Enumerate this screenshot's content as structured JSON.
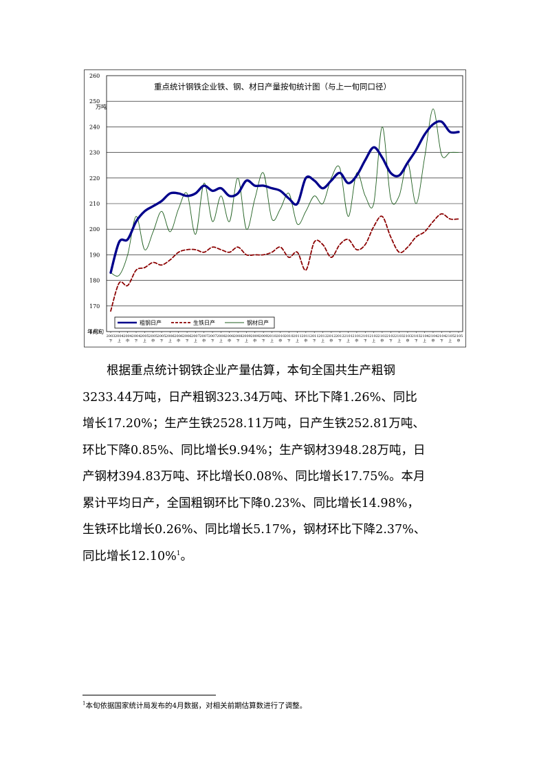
{
  "chart_data": {
    "type": "line",
    "title": "重点统计钢铁企业铁、钢、材日产量按旬统计图（与上一旬同口径）",
    "ylabel": "万吨",
    "xlabel": "年月旬",
    "ylim": [
      160,
      260
    ],
    "yticks": [
      160,
      170,
      180,
      190,
      200,
      210,
      220,
      230,
      240,
      250,
      260
    ],
    "grid": true,
    "legend_position": "bottom-left",
    "x_ticks": [
      {
        "year_month": "2003",
        "dekad": "下"
      },
      {
        "year_month": "2004",
        "dekad": "上"
      },
      {
        "year_month": "2004",
        "dekad": "中"
      },
      {
        "year_month": "2004",
        "dekad": "下"
      },
      {
        "year_month": "2005",
        "dekad": "上"
      },
      {
        "year_month": "2005",
        "dekad": "中"
      },
      {
        "year_month": "2005",
        "dekad": "下"
      },
      {
        "year_month": "2006",
        "dekad": "上"
      },
      {
        "year_month": "2006",
        "dekad": "中"
      },
      {
        "year_month": "2006",
        "dekad": "下"
      },
      {
        "year_month": "2007",
        "dekad": "上"
      },
      {
        "year_month": "2007",
        "dekad": "中"
      },
      {
        "year_month": "2007",
        "dekad": "下"
      },
      {
        "year_month": "2008",
        "dekad": "上"
      },
      {
        "year_month": "2008",
        "dekad": "中"
      },
      {
        "year_month": "2008",
        "dekad": "下"
      },
      {
        "year_month": "2009",
        "dekad": "上"
      },
      {
        "year_month": "2009",
        "dekad": "中"
      },
      {
        "year_month": "2009",
        "dekad": "下"
      },
      {
        "year_month": "2010",
        "dekad": "上"
      },
      {
        "year_month": "2010",
        "dekad": "中"
      },
      {
        "year_month": "2010",
        "dekad": "下"
      },
      {
        "year_month": "2011",
        "dekad": "上"
      },
      {
        "year_month": "2011",
        "dekad": "中"
      },
      {
        "year_month": "2011",
        "dekad": "下"
      },
      {
        "year_month": "2012",
        "dekad": "上"
      },
      {
        "year_month": "2012",
        "dekad": "中"
      },
      {
        "year_month": "2012",
        "dekad": "下"
      },
      {
        "year_month": "2101",
        "dekad": "上"
      },
      {
        "year_month": "2101",
        "dekad": "中"
      },
      {
        "year_month": "2101",
        "dekad": "下"
      },
      {
        "year_month": "2102",
        "dekad": "上"
      },
      {
        "year_month": "2102",
        "dekad": "中"
      },
      {
        "year_month": "2102",
        "dekad": "下"
      },
      {
        "year_month": "2103",
        "dekad": "上"
      },
      {
        "year_month": "2103",
        "dekad": "中"
      },
      {
        "year_month": "2103",
        "dekad": "下"
      },
      {
        "year_month": "2104",
        "dekad": "上"
      },
      {
        "year_month": "2104",
        "dekad": "中"
      },
      {
        "year_month": "2104",
        "dekad": "下"
      },
      {
        "year_month": "2105",
        "dekad": "上"
      },
      {
        "year_month": "2105",
        "dekad": "中"
      }
    ],
    "series": [
      {
        "name": "粗钢日产",
        "color": "#00008b",
        "style": "solid-thick",
        "values": [
          183,
          195,
          196,
          203,
          207,
          209,
          211,
          214,
          214,
          213,
          214,
          217,
          215,
          216,
          213,
          214,
          219,
          217,
          217,
          216,
          215,
          212,
          210,
          220,
          219,
          216,
          219,
          222,
          218,
          221,
          227,
          232,
          228,
          222,
          221,
          226,
          231,
          237,
          241,
          242,
          238,
          238
        ]
      },
      {
        "name": "生铁日产",
        "color": "#8b0000",
        "style": "dashed",
        "values": [
          168,
          179,
          178,
          184,
          185,
          187,
          186,
          188,
          191,
          192,
          192,
          191,
          193,
          192,
          191,
          193,
          190,
          190,
          190,
          191,
          193,
          189,
          191,
          184,
          195,
          194,
          189,
          194,
          196,
          192,
          194,
          201,
          205,
          197,
          191,
          193,
          197,
          199,
          203,
          206,
          204,
          204
        ]
      },
      {
        "name": "钢材日产",
        "color": "#1e5e1e",
        "style": "solid-thin",
        "values": [
          183,
          182,
          190,
          205,
          192,
          199,
          207,
          199,
          208,
          214,
          198,
          218,
          203,
          213,
          203,
          220,
          200,
          212,
          222,
          204,
          208,
          214,
          202,
          207,
          213,
          210,
          220,
          224,
          205,
          222,
          213,
          210,
          240,
          212,
          213,
          226,
          210,
          228,
          247,
          229,
          230,
          230
        ]
      }
    ]
  },
  "text": {
    "para_lines": [
      "根据重点统计钢铁企业产量估算，本旬全国共生产粗钢",
      "3233.44万吨，日产粗钢323.34万吨、环比下降1.26%、同比",
      "增长17.20%；生产生铁2528.11万吨，日产生铁252.81万吨、",
      "环比下降0.85%、同比增长9.94%；生产钢材3948.28万吨，日",
      "产钢材394.83万吨、环比增长0.08%、同比增长17.75%。本月",
      "累计平均日产，全国粗钢环比下降0.23%、同比增长14.98%，",
      "生铁环比增长0.26%、同比增长5.17%，钢材环比下降2.37%、",
      "同比增长12.10%"
    ],
    "last_line_end": "。",
    "footnote_ref": "1",
    "footnote_mark": "1",
    "footnote_text": "本旬依据国家统计局发布的4月数据，对相关前期估算数进行了调整。"
  }
}
